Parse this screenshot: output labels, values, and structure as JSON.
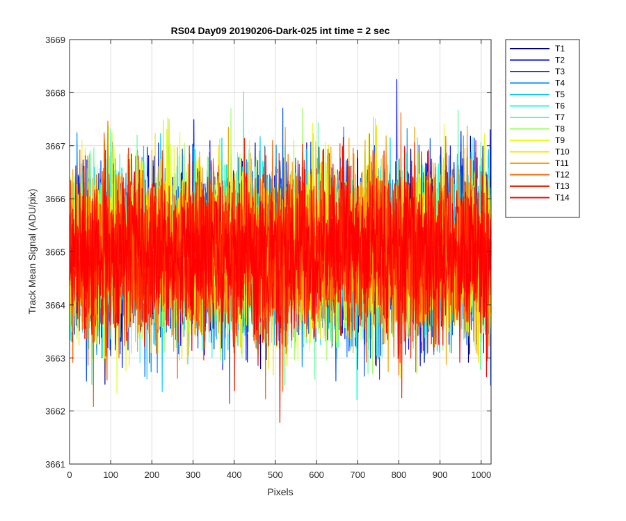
{
  "chart_data": {
    "type": "line",
    "title": "RS04 Day09 20190206-Dark-025 int time = 2 sec",
    "xlabel": "Pixels",
    "ylabel": "Track Mean Signal (ADU/pix)",
    "xlim": [
      0,
      1024
    ],
    "ylim": [
      3661,
      3669
    ],
    "xticks": [
      "0",
      "100",
      "200",
      "300",
      "400",
      "500",
      "600",
      "700",
      "800",
      "900",
      "1000"
    ],
    "yticks": [
      "3661",
      "3662",
      "3663",
      "3664",
      "3665",
      "3666",
      "3667",
      "3668",
      "3669"
    ],
    "grid": true,
    "legend_location": "outside-right",
    "x_count": 1024,
    "mean": 3665.0,
    "spread_std": 0.8,
    "series": [
      {
        "name": "T1",
        "color": "#00008f"
      },
      {
        "name": "T2",
        "color": "#0010ff"
      },
      {
        "name": "T3",
        "color": "#0050ff"
      },
      {
        "name": "T4",
        "color": "#0090ff"
      },
      {
        "name": "T5",
        "color": "#00d0ff"
      },
      {
        "name": "T6",
        "color": "#20ffdf"
      },
      {
        "name": "T7",
        "color": "#60ff9f"
      },
      {
        "name": "T8",
        "color": "#9fff60"
      },
      {
        "name": "T9",
        "color": "#dfff20"
      },
      {
        "name": "T10",
        "color": "#ffdf00"
      },
      {
        "name": "T11",
        "color": "#ffa000"
      },
      {
        "name": "T12",
        "color": "#ff6000"
      },
      {
        "name": "T13",
        "color": "#ff2000"
      },
      {
        "name": "T14",
        "color": "#ff0000"
      }
    ]
  }
}
